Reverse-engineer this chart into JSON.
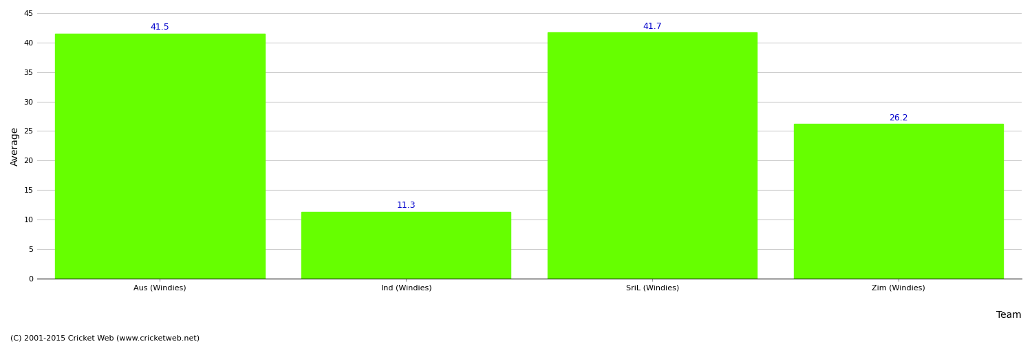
{
  "categories": [
    "Aus (Windies)",
    "Ind (Windies)",
    "SriL (Windies)",
    "Zim (Windies)"
  ],
  "values": [
    41.5,
    11.3,
    41.7,
    26.2
  ],
  "bar_color": "#66ff00",
  "bar_edge_color": "#66ff00",
  "value_color": "#0000cc",
  "ylabel": "Average",
  "xlabel": "Team",
  "ylim": [
    0,
    45
  ],
  "yticks": [
    0,
    5,
    10,
    15,
    20,
    25,
    30,
    35,
    40,
    45
  ],
  "background_color": "#ffffff",
  "grid_color": "#cccccc",
  "footer_text": "(C) 2001-2015 Cricket Web (www.cricketweb.net)",
  "value_fontsize": 9,
  "axis_label_fontsize": 10,
  "tick_fontsize": 8,
  "footer_fontsize": 8
}
